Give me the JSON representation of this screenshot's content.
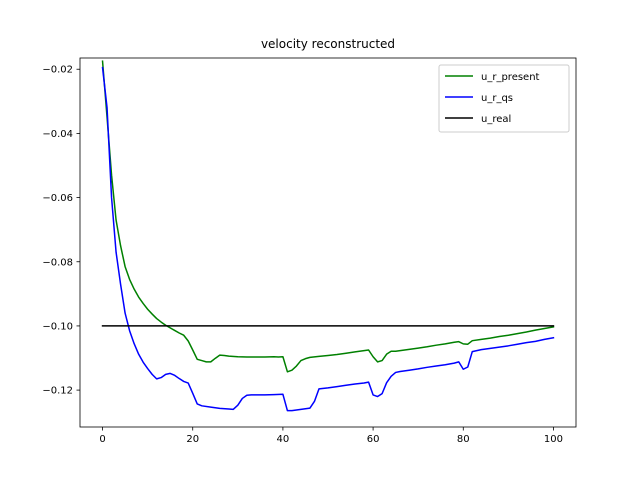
{
  "chart_data": {
    "type": "line",
    "title": "velocity reconstructed",
    "xlabel": "",
    "ylabel": "",
    "xlim": [
      -5,
      105
    ],
    "ylim": [
      -0.1315,
      -0.0165
    ],
    "xticks": [
      0,
      20,
      40,
      60,
      80,
      100
    ],
    "xtick_labels": [
      "0",
      "20",
      "40",
      "60",
      "80",
      "100"
    ],
    "yticks": [
      -0.02,
      -0.04,
      -0.06,
      -0.08,
      -0.1,
      -0.12
    ],
    "ytick_labels": [
      "−0.02",
      "−0.04",
      "−0.06",
      "−0.08",
      "−0.10",
      "−0.12"
    ],
    "grid": false,
    "legend_position": "top-right",
    "series": [
      {
        "name": "u_r_present",
        "color": "#008000",
        "x": [
          0,
          1,
          2,
          3,
          4,
          5,
          6,
          7,
          8,
          9,
          10,
          11,
          12,
          13,
          14,
          15,
          16,
          17,
          18,
          19,
          20,
          21,
          22,
          23,
          24,
          25,
          26,
          27,
          28,
          30,
          32,
          34,
          36,
          38,
          39,
          40,
          41,
          42,
          43,
          44,
          45,
          46,
          48,
          50,
          52,
          54,
          56,
          58,
          59,
          60,
          61,
          62,
          63,
          64,
          65,
          66,
          68,
          70,
          72,
          74,
          76,
          78,
          79,
          80,
          81,
          82,
          84,
          86,
          88,
          90,
          92,
          94,
          96,
          98,
          100
        ],
        "values": [
          -0.0175,
          -0.035,
          -0.053,
          -0.067,
          -0.075,
          -0.0815,
          -0.0855,
          -0.0885,
          -0.091,
          -0.093,
          -0.0948,
          -0.0963,
          -0.0977,
          -0.0988,
          -0.0998,
          -0.1006,
          -0.1014,
          -0.1022,
          -0.1029,
          -0.1047,
          -0.1075,
          -0.1104,
          -0.1108,
          -0.1112,
          -0.1112,
          -0.1101,
          -0.1091,
          -0.1092,
          -0.1094,
          -0.1096,
          -0.1097,
          -0.1097,
          -0.1097,
          -0.1096,
          -0.1097,
          -0.1096,
          -0.1143,
          -0.1138,
          -0.1125,
          -0.1108,
          -0.1102,
          -0.1098,
          -0.1095,
          -0.1092,
          -0.1089,
          -0.1085,
          -0.1081,
          -0.1077,
          -0.1075,
          -0.1096,
          -0.1112,
          -0.1108,
          -0.1088,
          -0.1079,
          -0.1079,
          -0.1077,
          -0.1073,
          -0.1069,
          -0.1065,
          -0.106,
          -0.1056,
          -0.1051,
          -0.1049,
          -0.1056,
          -0.1057,
          -0.1046,
          -0.1042,
          -0.1038,
          -0.1033,
          -0.1029,
          -0.1024,
          -0.1019,
          -0.1013,
          -0.1008,
          -0.1003
        ]
      },
      {
        "name": "u_r_qs",
        "color": "#0000ff",
        "x": [
          0,
          1,
          2,
          3,
          4,
          5,
          6,
          7,
          8,
          9,
          10,
          11,
          12,
          13,
          14,
          15,
          16,
          17,
          18,
          19,
          20,
          21,
          22,
          24,
          26,
          28,
          29,
          30,
          31,
          32,
          33,
          34,
          36,
          38,
          40,
          41,
          42,
          44,
          46,
          47,
          48,
          50,
          52,
          54,
          56,
          58,
          59,
          60,
          61,
          62,
          63,
          64,
          65,
          66,
          68,
          70,
          72,
          74,
          76,
          78,
          79,
          80,
          81,
          82,
          84,
          86,
          88,
          90,
          92,
          94,
          96,
          98,
          100
        ],
        "values": [
          -0.0195,
          -0.032,
          -0.06,
          -0.077,
          -0.087,
          -0.096,
          -0.1015,
          -0.1055,
          -0.1088,
          -0.1113,
          -0.1133,
          -0.1151,
          -0.1165,
          -0.1161,
          -0.1151,
          -0.1148,
          -0.1154,
          -0.1164,
          -0.1173,
          -0.1178,
          -0.121,
          -0.1243,
          -0.1249,
          -0.1253,
          -0.1257,
          -0.1259,
          -0.126,
          -0.1247,
          -0.1226,
          -0.1216,
          -0.1215,
          -0.1215,
          -0.1215,
          -0.1214,
          -0.1213,
          -0.1264,
          -0.1264,
          -0.126,
          -0.1256,
          -0.1235,
          -0.1196,
          -0.1193,
          -0.1189,
          -0.1185,
          -0.1181,
          -0.1178,
          -0.1175,
          -0.1215,
          -0.122,
          -0.1211,
          -0.1177,
          -0.1157,
          -0.1145,
          -0.1142,
          -0.1138,
          -0.1134,
          -0.1129,
          -0.1125,
          -0.1121,
          -0.1116,
          -0.1112,
          -0.1135,
          -0.1128,
          -0.108,
          -0.1074,
          -0.107,
          -0.1066,
          -0.1062,
          -0.1057,
          -0.1052,
          -0.1048,
          -0.1042,
          -0.1037
        ]
      },
      {
        "name": "u_real",
        "color": "#000000",
        "x": [
          0,
          100
        ],
        "values": [
          -0.1,
          -0.1
        ]
      }
    ]
  }
}
